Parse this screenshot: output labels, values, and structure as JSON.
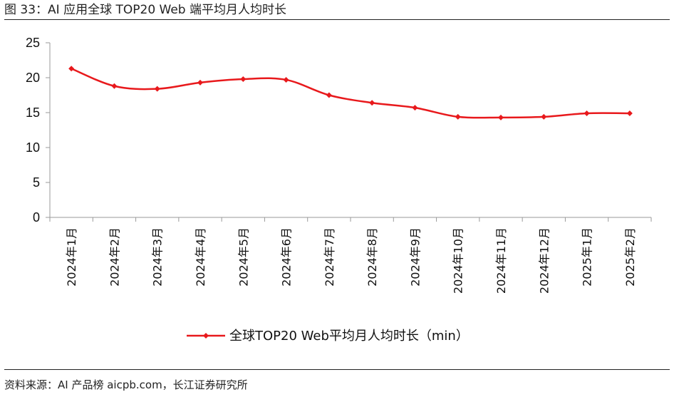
{
  "figure_title": "图 33：AI 应用全球 TOP20 Web 端平均月人均时长",
  "source_note": "资料来源：AI 产品榜 aicpb.com，长江证券研究所",
  "colors": {
    "series": "#e8191c",
    "axis": "#9a9a9a",
    "text": "#111111"
  },
  "chart_data": {
    "type": "line",
    "categories": [
      "2024年1月",
      "2024年2月",
      "2024年3月",
      "2024年4月",
      "2024年5月",
      "2024年6月",
      "2024年7月",
      "2024年8月",
      "2024年9月",
      "2024年10月",
      "2024年11月",
      "2024年12月",
      "2025年1月",
      "2025年2月"
    ],
    "series": [
      {
        "name": "全球TOP20 Web平均月人均时长（min）",
        "values": [
          21.3,
          18.8,
          18.4,
          19.3,
          19.8,
          19.7,
          17.5,
          16.4,
          15.7,
          14.4,
          14.3,
          14.4,
          14.9,
          14.9
        ]
      }
    ],
    "ylim": [
      0,
      25
    ],
    "yticks": [
      "0",
      "5",
      "10",
      "15",
      "20",
      "25"
    ],
    "grid": false,
    "smooth": true,
    "legend_position": "bottom-center"
  }
}
